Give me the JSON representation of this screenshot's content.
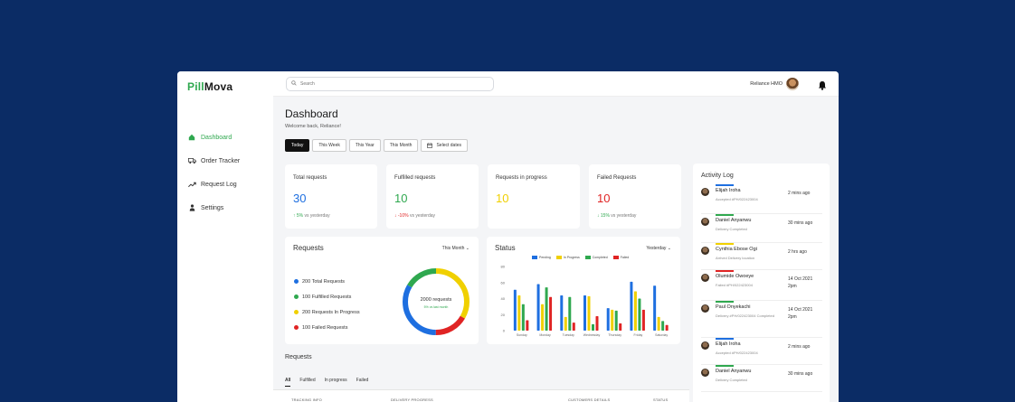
{
  "brand": {
    "part1": "Pill",
    "part2": "Mova"
  },
  "sidebar": {
    "items": [
      {
        "label": "Dashboard",
        "icon": "home-icon",
        "active": true
      },
      {
        "label": "Order Tracker",
        "icon": "truck-icon"
      },
      {
        "label": "Request Log",
        "icon": "trend-icon"
      },
      {
        "label": "Settings",
        "icon": "user-icon"
      }
    ]
  },
  "topbar": {
    "search_placeholder": "Search",
    "user_name": "Reliance HMO"
  },
  "page": {
    "title": "Dashboard",
    "welcome": "Welcome back, Reliance!"
  },
  "filters": [
    "Today",
    "This Week",
    "This Year",
    "This Month"
  ],
  "select_dates": "Select dates",
  "stats": [
    {
      "label": "Total requests",
      "value": "30",
      "delta": "5%",
      "delta_text": "vs yesterday",
      "trend": "up",
      "color": "#1e6fe0"
    },
    {
      "label": "Fulfilled requests",
      "value": "10",
      "delta": "-10%",
      "delta_text": "vs yesterday",
      "trend": "down",
      "color": "#2fa84f"
    },
    {
      "label": "Requests in progress",
      "value": "10",
      "delta": "",
      "delta_text": "",
      "trend": "",
      "color": "#f0d000"
    },
    {
      "label": "Failed Requests",
      "value": "10",
      "delta": "15%",
      "delta_text": "vs yesterday",
      "trend": "up",
      "color": "#e02424"
    }
  ],
  "requests_card": {
    "title": "Requests",
    "period": "This Month",
    "legend": [
      {
        "label": "200 Total Requests",
        "color": "#1e6fe0"
      },
      {
        "label": "100 Fulfilled Requests",
        "color": "#2fa84f"
      },
      {
        "label": "200 Requests In Progress",
        "color": "#f0d000"
      },
      {
        "label": "100 Failed Requests",
        "color": "#e02424"
      }
    ],
    "donut_center": "2000 requests",
    "donut_sub": "5% vs last month",
    "donut_segments": [
      {
        "value": 200,
        "color": "#1e6fe0"
      },
      {
        "value": 100,
        "color": "#2fa84f"
      },
      {
        "value": 200,
        "color": "#f0d000"
      },
      {
        "value": 100,
        "color": "#e02424"
      }
    ]
  },
  "chart_data": {
    "type": "bar",
    "title": "Status",
    "period": "Yesterday",
    "categories": [
      "Sunday",
      "Monday",
      "Tuesday",
      "Wednesday",
      "Thursday",
      "Friday",
      "Saturday"
    ],
    "series": [
      {
        "name": "Pending",
        "color": "#1e6fe0",
        "values": [
          51,
          58,
          44,
          44,
          28,
          61,
          56
        ]
      },
      {
        "name": "In Progress",
        "color": "#f0d000",
        "values": [
          44,
          33,
          17,
          43,
          26,
          49,
          17
        ]
      },
      {
        "name": "Completed",
        "color": "#2fa84f",
        "values": [
          33,
          54,
          42,
          8,
          25,
          40,
          12
        ]
      },
      {
        "name": "Failed",
        "color": "#e02424",
        "values": [
          13,
          42,
          10,
          18,
          9,
          26,
          7
        ]
      }
    ],
    "yticks": [
      0,
      20,
      40,
      60,
      80
    ],
    "ylim": [
      0,
      80
    ],
    "grid": false,
    "legend": "top-center"
  },
  "activity": {
    "title": "Activity Log",
    "items": [
      {
        "name": "Elijah Iroha",
        "sub": "Accepted #PH/022423004",
        "time": "2 mins ago",
        "time2": "",
        "color": "#1e6fe0"
      },
      {
        "name": "Daniel Anyanwu",
        "sub": "Delivery Completed",
        "time": "30 mins ago",
        "time2": "",
        "color": "#2fa84f"
      },
      {
        "name": "Cynthia Ebose Ogi",
        "sub": "Arrived Delivery location",
        "time": "2 hrs ago",
        "time2": "",
        "color": "#f0d000"
      },
      {
        "name": "Olumide Owoeye",
        "sub": "Failed #PH/022423004",
        "time": "14 Oct 2021",
        "time2": "2pm",
        "color": "#e02424"
      },
      {
        "name": "Paul Onyekachi",
        "sub": "Delivery #PH/022423004 Completed",
        "time": "14 Oct 2021",
        "time2": "2pm",
        "color": "#2fa84f"
      },
      {
        "name": "Elijah Iroha",
        "sub": "Accepted #PH/022423004",
        "time": "2 mins ago",
        "time2": "",
        "color": "#1e6fe0"
      },
      {
        "name": "Daniel Anyanwu",
        "sub": "Delivery Completed",
        "time": "30 mins ago",
        "time2": "",
        "color": "#2fa84f"
      }
    ]
  },
  "requests_section": {
    "title": "Requests",
    "tabs": [
      "All",
      "Fulfilled",
      "In progress",
      "Failed"
    ],
    "columns": [
      "TRACKING INFO",
      "DELIVERY PROGRESS",
      "CUSTOMERS DETAILS",
      "STATUS"
    ]
  }
}
